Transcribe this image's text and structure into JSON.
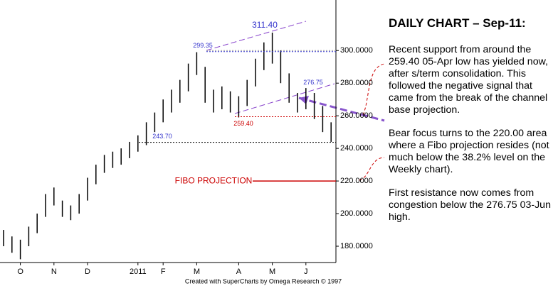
{
  "chart_data": {
    "type": "ohlc",
    "title": "DAILY CHART – Sep-11:",
    "categories": [
      null,
      null,
      "O",
      null,
      null,
      null,
      "N",
      null,
      null,
      null,
      "D",
      null,
      null,
      null,
      null,
      null,
      "2011",
      null,
      null,
      "F",
      null,
      null,
      null,
      "M",
      null,
      null,
      null,
      null,
      "A",
      null,
      null,
      null,
      "M",
      null,
      null,
      null,
      "J",
      null,
      null,
      null
    ],
    "high": [
      190,
      186,
      184,
      192,
      200,
      212,
      216,
      208,
      205,
      212,
      222,
      230,
      236,
      238,
      240,
      244,
      248,
      256,
      262,
      270,
      276,
      282,
      292,
      299,
      290,
      276,
      278,
      275,
      272,
      282,
      295,
      305,
      311,
      300,
      286,
      274,
      277,
      274,
      266,
      256
    ],
    "low": [
      180,
      176,
      172,
      180,
      188,
      198,
      205,
      198,
      196,
      200,
      208,
      218,
      225,
      228,
      230,
      234,
      238,
      242,
      250,
      256,
      262,
      268,
      275,
      285,
      268,
      262,
      264,
      262,
      259,
      266,
      278,
      288,
      292,
      280,
      268,
      262,
      264,
      258,
      250,
      244
    ],
    "color": "#000000",
    "ylim": [
      170,
      331
    ],
    "yticks": [
      {
        "value": 180,
        "label": "180.0000"
      },
      {
        "value": 200,
        "label": "200.0000"
      },
      {
        "value": 220,
        "label": "220.0000"
      },
      {
        "value": 240,
        "label": "240.0000"
      },
      {
        "value": 260,
        "label": "260.0000"
      },
      {
        "value": 280,
        "label": "280.0000"
      },
      {
        "value": 300,
        "label": "300.0000"
      }
    ],
    "levels": [
      {
        "value": 311.4,
        "label": "311.40",
        "color": "#3333cc"
      },
      {
        "value": 299.35,
        "label": "299.35",
        "color": "#3333cc"
      },
      {
        "value": 276.75,
        "label": "276.75",
        "color": "#3333cc"
      },
      {
        "value": 259.4,
        "label": "259.40",
        "color": "#cc0000"
      },
      {
        "value": 243.7,
        "label": "243.70",
        "color": "#3333cc"
      },
      {
        "value": 220,
        "label": "FIBO PROJECTION",
        "color": "#cc0000"
      }
    ],
    "paragraphs": [
      "Recent support from around the 259.40 05-Apr low has yielded now, after s/term consolidation. This followed the negative signal that came from the break of the channel base projection.",
      "Bear focus turns to the 220.00 area where a Fibo projection resides (not much below the 38.2% level on the Weekly chart).",
      "First resistance now comes from congestion below the 276.75 03-Jun high."
    ],
    "footer": "Created with SuperCharts by Omega Research © 1997"
  }
}
